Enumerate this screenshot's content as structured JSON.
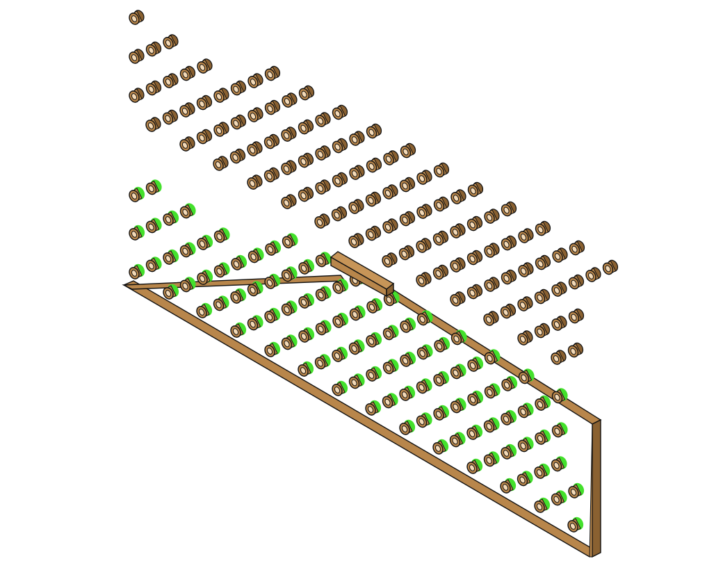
{
  "colors": {
    "background": "#ffffff",
    "wood_body": "#b8864b",
    "wood_dark": "#8a6131",
    "hole": "#f3d9b6",
    "outline": "#111111",
    "highlight": "#44e02c"
  },
  "scene": {
    "description_shown_text": "",
    "upper_grid": {
      "row_counts": [
        1,
        3,
        5,
        7,
        8,
        8,
        8,
        8,
        8,
        8,
        8,
        8,
        8,
        8,
        8,
        8,
        8,
        8,
        6,
        4,
        2
      ]
    },
    "lower_grid": {
      "row_counts": [
        2,
        4,
        6,
        8,
        8,
        8,
        8,
        8,
        8,
        8,
        8,
        8,
        8,
        8,
        8,
        6,
        4,
        2
      ],
      "highlight": "green-rim"
    }
  }
}
